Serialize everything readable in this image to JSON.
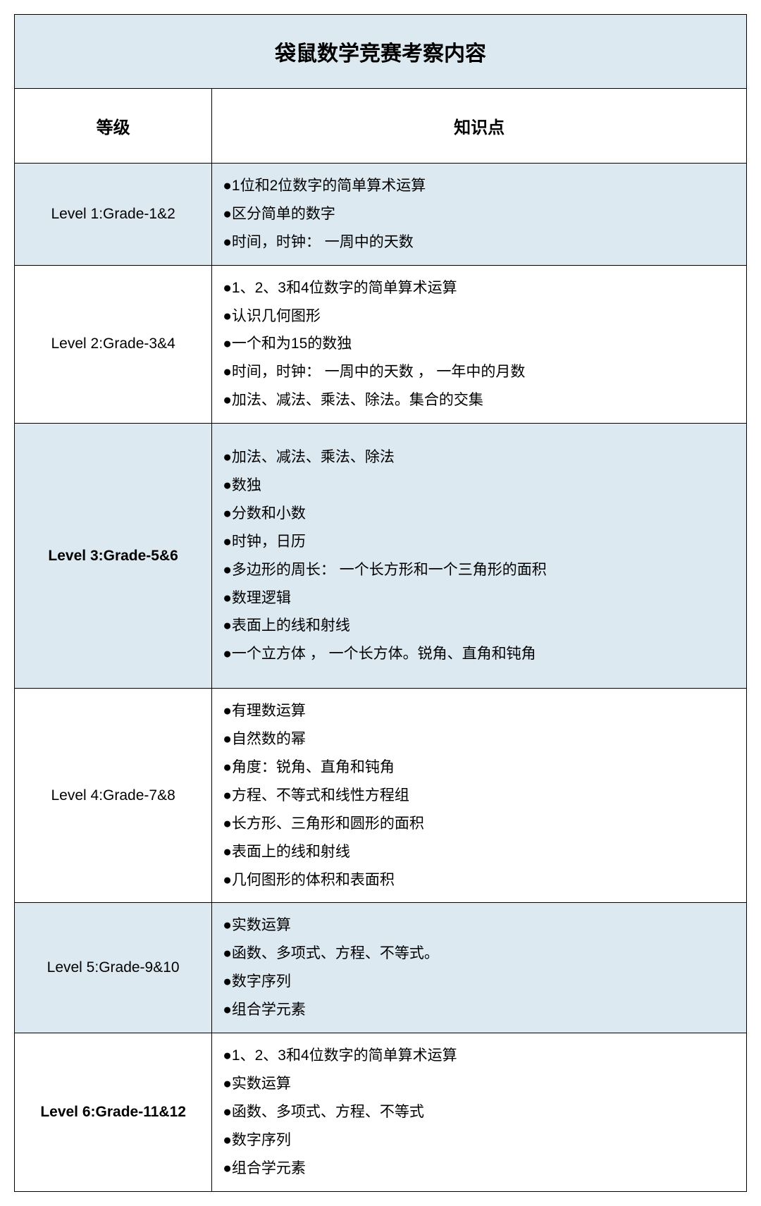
{
  "colors": {
    "row_blue": "#dce9f1",
    "row_white": "#ffffff",
    "border": "#000000",
    "text": "#000000"
  },
  "table": {
    "title": "袋鼠数学竞赛考察内容",
    "headers": {
      "level": "等级",
      "knowledge": "知识点"
    },
    "rows": [
      {
        "level": "Level 1:Grade-1&2",
        "bold": false,
        "bg": "blue",
        "extra_pad": false,
        "items": [
          "●1位和2位数字的简单算术运算",
          "●区分简单的数字",
          "●时间，时钟： 一周中的天数"
        ]
      },
      {
        "level": "Level 2:Grade-3&4",
        "bold": false,
        "bg": "white",
        "extra_pad": false,
        "items": [
          "●1、2、3和4位数字的简单算术运算",
          "●认识几何图形",
          "●一个和为15的数独",
          "●时间，时钟： 一周中的天数 ， 一年中的月数",
          "●加法、减法、乘法、除法。集合的交集"
        ]
      },
      {
        "level": "Level 3:Grade-5&6",
        "bold": true,
        "bg": "blue",
        "extra_pad": true,
        "items": [
          "●加法、减法、乘法、除法",
          "●数独",
          "●分数和小数",
          "●时钟，日历",
          "●多边形的周长： 一个长方形和一个三角形的面积",
          "●数理逻辑",
          "●表面上的线和射线",
          "●一个立方体 ， 一个长方体。锐角、直角和钝角"
        ]
      },
      {
        "level": "Level 4:Grade-7&8",
        "bold": false,
        "bg": "white",
        "extra_pad": false,
        "items": [
          "●有理数运算",
          "●自然数的幂",
          "●角度：锐角、直角和钝角",
          "●方程、不等式和线性方程组",
          "●长方形、三角形和圆形的面积",
          "●表面上的线和射线",
          "●几何图形的体积和表面积"
        ]
      },
      {
        "level": "Level 5:Grade-9&10",
        "bold": false,
        "bg": "blue",
        "extra_pad": false,
        "items": [
          "●实数运算",
          "●函数、多项式、方程、不等式。",
          "●数字序列",
          "●组合学元素"
        ]
      },
      {
        "level": "Level 6:Grade-11&12",
        "bold": true,
        "bg": "white",
        "extra_pad": false,
        "items": [
          "●1、2、3和4位数字的简单算术运算",
          "●实数运算",
          "●函数、多项式、方程、不等式",
          "●数字序列",
          "●组合学元素"
        ]
      }
    ]
  }
}
